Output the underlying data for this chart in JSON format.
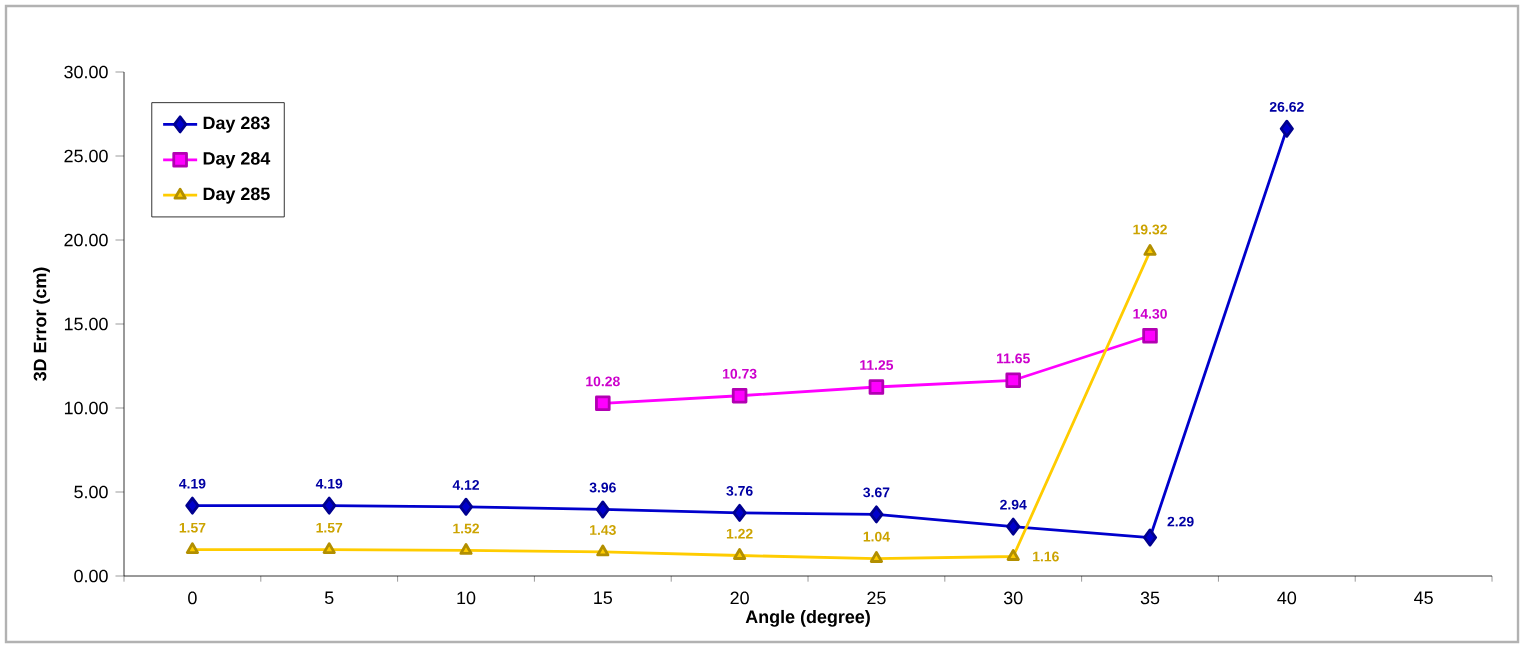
{
  "chart_data": {
    "type": "line",
    "xlabel": "Angle (degree)",
    "ylabel": "3D Error (cm)",
    "categories": [
      "0",
      "5",
      "10",
      "15",
      "20",
      "25",
      "30",
      "35",
      "40",
      "45"
    ],
    "series": [
      {
        "name": "Day 283",
        "color": "#0000cc",
        "marker": "diamond",
        "values": [
          4.19,
          4.19,
          4.12,
          3.96,
          3.76,
          3.67,
          2.94,
          2.29,
          26.62,
          null
        ],
        "value_labels": [
          "4.19",
          "4.19",
          "4.12",
          "3.96",
          "3.76",
          "3.67",
          "2.94",
          "2.29",
          "26.62",
          null
        ]
      },
      {
        "name": "Day 284",
        "color": "#ff00ff",
        "marker": "square",
        "values": [
          null,
          null,
          null,
          10.28,
          10.73,
          11.25,
          11.65,
          14.3,
          null,
          null
        ],
        "value_labels": [
          null,
          null,
          null,
          "10.28",
          "10.73",
          "11.25",
          "11.65",
          "14.30",
          null,
          null
        ]
      },
      {
        "name": "Day 285",
        "color": "#ffcc00",
        "marker": "triangle",
        "values": [
          1.57,
          1.57,
          1.52,
          1.43,
          1.22,
          1.04,
          1.16,
          19.32,
          null,
          null
        ],
        "value_labels": [
          "1.57",
          "1.57",
          "1.52",
          "1.43",
          "1.22",
          "1.04",
          "1.16",
          "19.32",
          null,
          null
        ]
      }
    ],
    "ylim": [
      0,
      30
    ],
    "yticks": [
      {
        "value": 0,
        "label": "0.00"
      },
      {
        "value": 5,
        "label": "5.00"
      },
      {
        "value": 10,
        "label": "10.00"
      },
      {
        "value": 15,
        "label": "15.00"
      },
      {
        "value": 20,
        "label": "20.00"
      },
      {
        "value": 25,
        "label": "25.00"
      },
      {
        "value": 30,
        "label": "30.00"
      }
    ],
    "grid": false,
    "legend": "top left",
    "line_style": "solid"
  }
}
